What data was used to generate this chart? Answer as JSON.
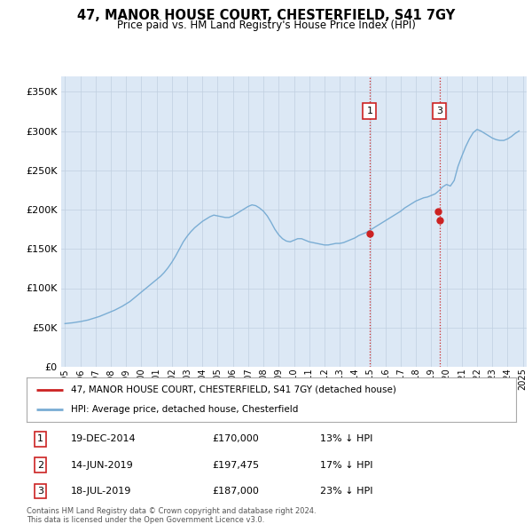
{
  "title": "47, MANOR HOUSE COURT, CHESTERFIELD, S41 7GY",
  "subtitle": "Price paid vs. HM Land Registry's House Price Index (HPI)",
  "legend_property": "47, MANOR HOUSE COURT, CHESTERFIELD, S41 7GY (detached house)",
  "legend_hpi": "HPI: Average price, detached house, Chesterfield",
  "footer1": "Contains HM Land Registry data © Crown copyright and database right 2024.",
  "footer2": "This data is licensed under the Open Government Licence v3.0.",
  "transactions": [
    {
      "num": 1,
      "date": "19-DEC-2014",
      "price": 170000,
      "pct": "13%",
      "dir": "↓",
      "year": 2014.96
    },
    {
      "num": 2,
      "date": "14-JUN-2019",
      "price": 197475,
      "pct": "17%",
      "dir": "↓",
      "year": 2019.45
    },
    {
      "num": 3,
      "date": "18-JUL-2019",
      "price": 187000,
      "pct": "23%",
      "dir": "↓",
      "year": 2019.54
    }
  ],
  "ylim": [
    0,
    370000
  ],
  "yticks": [
    0,
    50000,
    100000,
    150000,
    200000,
    250000,
    300000,
    350000
  ],
  "ytick_labels": [
    "£0",
    "£50K",
    "£100K",
    "£150K",
    "£200K",
    "£250K",
    "£300K",
    "£350K"
  ],
  "background_color": "#dce8f5",
  "hpi_color": "#7aadd4",
  "property_color": "#cc2222",
  "vline_color": "#cc2222",
  "grid_color": "#c0cfe0",
  "hpi_years": [
    1995.0,
    1995.25,
    1995.5,
    1995.75,
    1996.0,
    1996.25,
    1996.5,
    1996.75,
    1997.0,
    1997.25,
    1997.5,
    1997.75,
    1998.0,
    1998.25,
    1998.5,
    1998.75,
    1999.0,
    1999.25,
    1999.5,
    1999.75,
    2000.0,
    2000.25,
    2000.5,
    2000.75,
    2001.0,
    2001.25,
    2001.5,
    2001.75,
    2002.0,
    2002.25,
    2002.5,
    2002.75,
    2003.0,
    2003.25,
    2003.5,
    2003.75,
    2004.0,
    2004.25,
    2004.5,
    2004.75,
    2005.0,
    2005.25,
    2005.5,
    2005.75,
    2006.0,
    2006.25,
    2006.5,
    2006.75,
    2007.0,
    2007.25,
    2007.5,
    2007.75,
    2008.0,
    2008.25,
    2008.5,
    2008.75,
    2009.0,
    2009.25,
    2009.5,
    2009.75,
    2010.0,
    2010.25,
    2010.5,
    2010.75,
    2011.0,
    2011.25,
    2011.5,
    2011.75,
    2012.0,
    2012.25,
    2012.5,
    2012.75,
    2013.0,
    2013.25,
    2013.5,
    2013.75,
    2014.0,
    2014.25,
    2014.5,
    2014.75,
    2015.0,
    2015.25,
    2015.5,
    2015.75,
    2016.0,
    2016.25,
    2016.5,
    2016.75,
    2017.0,
    2017.25,
    2017.5,
    2017.75,
    2018.0,
    2018.25,
    2018.5,
    2018.75,
    2019.0,
    2019.25,
    2019.5,
    2019.75,
    2020.0,
    2020.25,
    2020.5,
    2020.75,
    2021.0,
    2021.25,
    2021.5,
    2021.75,
    2022.0,
    2022.25,
    2022.5,
    2022.75,
    2023.0,
    2023.25,
    2023.5,
    2023.75,
    2024.0,
    2024.25,
    2024.5,
    2024.75
  ],
  "hpi_values": [
    55000,
    55500,
    56000,
    56800,
    57500,
    58500,
    59500,
    61000,
    62500,
    64000,
    66000,
    68000,
    70000,
    72000,
    74500,
    77000,
    80000,
    83000,
    87000,
    91000,
    95000,
    99000,
    103000,
    107000,
    111000,
    115000,
    120000,
    126000,
    133000,
    141000,
    150000,
    159000,
    166000,
    172000,
    177000,
    181000,
    185000,
    188000,
    191000,
    193000,
    192000,
    191000,
    190000,
    190000,
    192000,
    195000,
    198000,
    201000,
    204000,
    206000,
    205000,
    202000,
    198000,
    192000,
    184000,
    175000,
    168000,
    163000,
    160000,
    159000,
    161000,
    163000,
    163000,
    161000,
    159000,
    158000,
    157000,
    156000,
    155000,
    155000,
    156000,
    157000,
    157000,
    158000,
    160000,
    162000,
    164000,
    167000,
    169000,
    171000,
    174000,
    177000,
    180000,
    183000,
    186000,
    189000,
    192000,
    195000,
    198000,
    202000,
    205000,
    208000,
    211000,
    213000,
    215000,
    216000,
    218000,
    220000,
    224000,
    229000,
    232000,
    230000,
    237000,
    255000,
    268000,
    280000,
    290000,
    298000,
    302000,
    300000,
    297000,
    294000,
    291000,
    289000,
    288000,
    288000,
    290000,
    293000,
    297000,
    300000
  ],
  "property_years": [
    2014.96,
    2019.45,
    2019.54
  ],
  "property_prices": [
    170000,
    197475,
    187000
  ],
  "vline_transactions": [
    1,
    3
  ],
  "label_transactions": [
    1,
    3
  ],
  "xlim": [
    1994.75,
    2025.25
  ],
  "xticks": [
    1995,
    1996,
    1997,
    1998,
    1999,
    2000,
    2001,
    2002,
    2003,
    2004,
    2005,
    2006,
    2007,
    2008,
    2009,
    2010,
    2011,
    2012,
    2013,
    2014,
    2015,
    2016,
    2017,
    2018,
    2019,
    2020,
    2021,
    2022,
    2023,
    2024,
    2025
  ]
}
